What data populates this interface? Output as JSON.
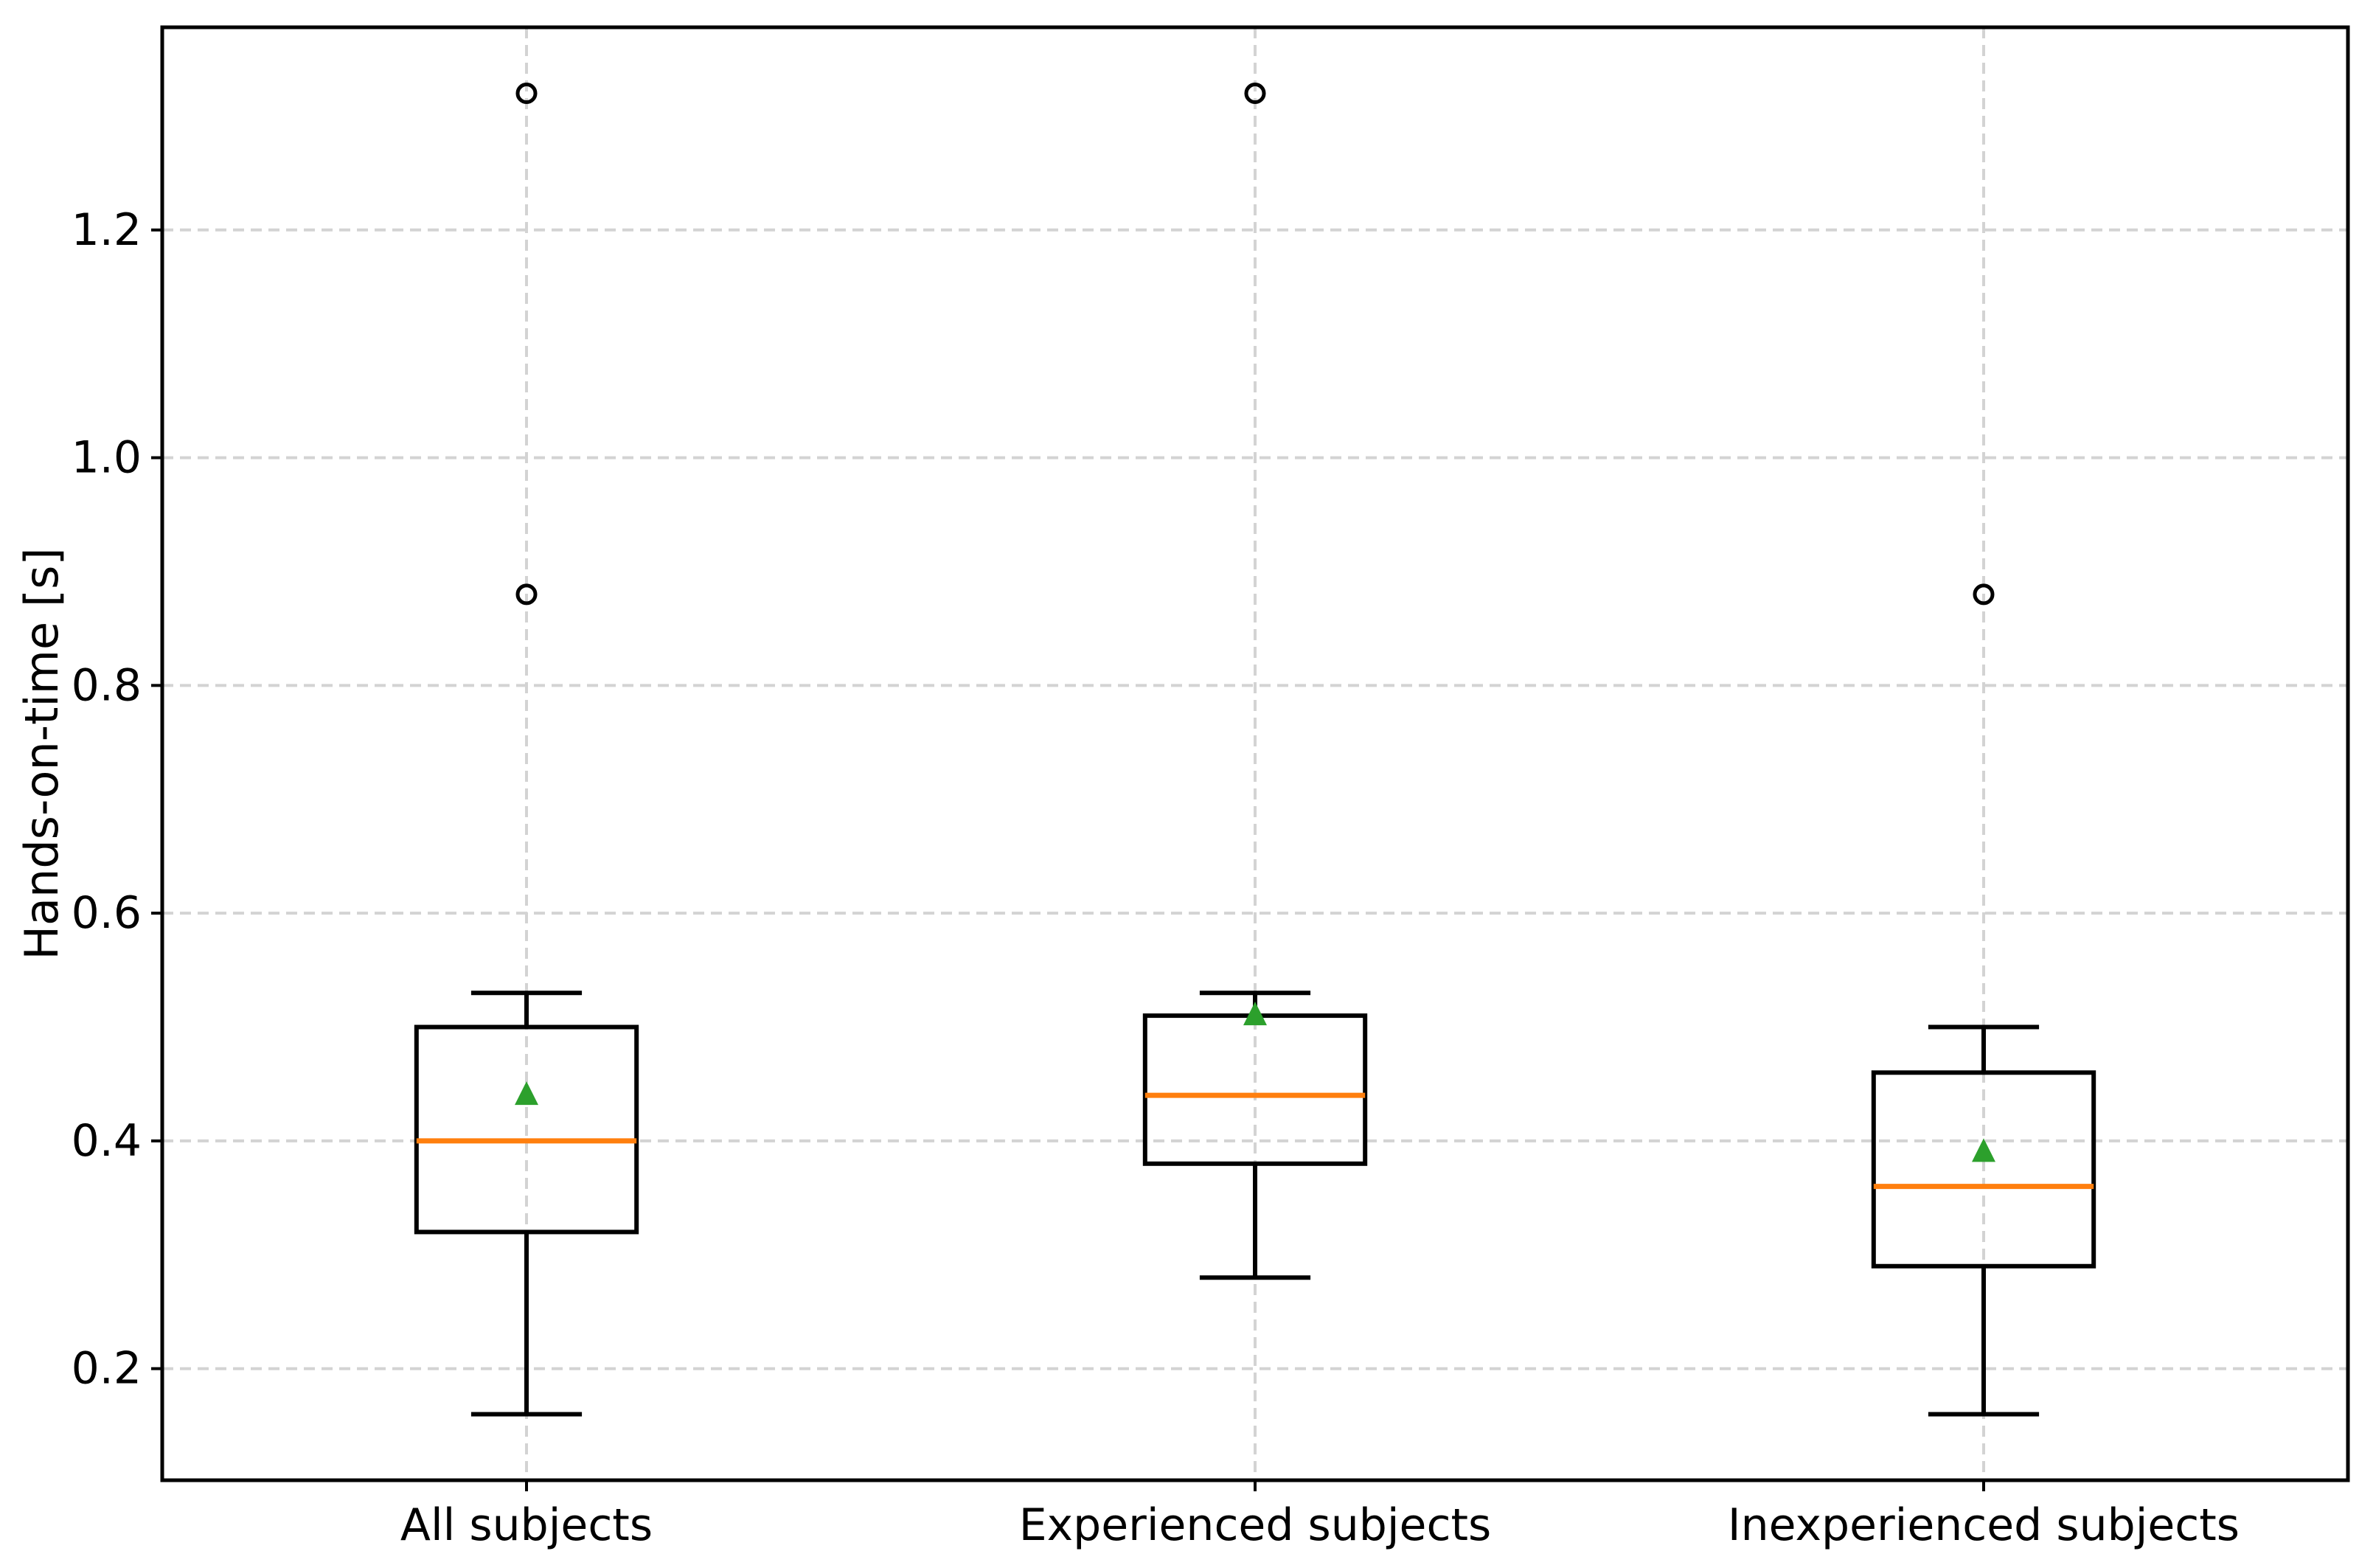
{
  "chart_data": {
    "type": "box",
    "title": "",
    "xlabel": "",
    "ylabel": "Hands-on-time [s]",
    "categories": [
      "All subjects",
      "Experienced subjects",
      "Inexperienced subjects"
    ],
    "series": [
      {
        "category": "All subjects",
        "whisker_low": 0.16,
        "q1": 0.32,
        "median": 0.4,
        "q3": 0.5,
        "whisker_high": 0.53,
        "mean": 0.44,
        "outliers": [
          0.88,
          1.32
        ]
      },
      {
        "category": "Experienced subjects",
        "whisker_low": 0.28,
        "q1": 0.38,
        "median": 0.44,
        "q3": 0.51,
        "whisker_high": 0.53,
        "mean": 0.51,
        "outliers": [
          1.32
        ]
      },
      {
        "category": "Inexperienced subjects",
        "whisker_low": 0.16,
        "q1": 0.29,
        "median": 0.36,
        "q3": 0.46,
        "whisker_high": 0.5,
        "mean": 0.39,
        "outliers": [
          0.88
        ]
      }
    ],
    "yticks": [
      0.2,
      0.4,
      0.6,
      0.8,
      1.0,
      1.2
    ],
    "ytick_labels": [
      "0.2",
      "0.4",
      "0.6",
      "0.8",
      "1.0",
      "1.2"
    ],
    "ylim": [
      0.102,
      1.378
    ],
    "xlim": [
      0.5,
      3.5
    ],
    "positions": [
      1,
      2,
      3
    ],
    "grid": true,
    "grid_axes": "both",
    "legend": null,
    "box_width": 0.302,
    "cap_width": 0.152,
    "colors": {
      "box_edge": "#000000",
      "median": "#ff7f0e",
      "mean_marker": "#2ca02c",
      "outlier_edge": "#000000",
      "grid": "#d3d3d3",
      "axes": "#000000",
      "text": "#000000",
      "background": "#ffffff"
    }
  }
}
